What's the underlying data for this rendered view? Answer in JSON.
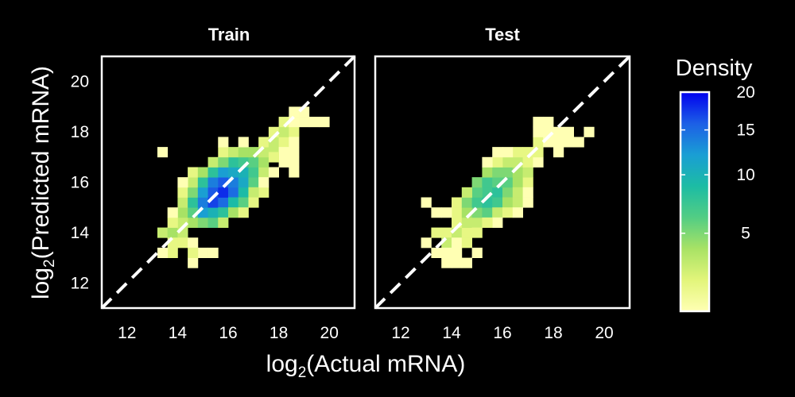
{
  "chart_data": {
    "type": "heatmap",
    "shared_axes": {
      "xlabel": {
        "prefix": "log",
        "subscript": "2",
        "text": "(Actual mRNA)"
      },
      "ylabel": {
        "prefix": "log",
        "subscript": "2",
        "text": "(Predicted mRNA)"
      },
      "xlim": [
        11,
        21
      ],
      "ylim": [
        11,
        21
      ],
      "xticks": [
        12,
        14,
        16,
        18,
        20
      ],
      "yticks": [
        12,
        14,
        16,
        18,
        20
      ],
      "xtick_labels": [
        "12",
        "14",
        "16",
        "18",
        "20"
      ],
      "ytick_labels": [
        "12",
        "14",
        "16",
        "18",
        "20"
      ],
      "bin_size": 0.4,
      "reference_line": "y = x (dashed, white)"
    },
    "legend": {
      "title": "Density",
      "scale": "sqrt",
      "range": [
        1,
        20
      ],
      "ticks": [
        5,
        10,
        15,
        20
      ],
      "tick_labels": [
        "5",
        "10",
        "15",
        "20"
      ],
      "placement": "right",
      "colors": [
        "#ffffb3",
        "#e2f57a",
        "#a8e265",
        "#52cd84",
        "#1cbca4",
        "#1a9ed4",
        "#1c5fe6",
        "#0000ee"
      ]
    },
    "panels": [
      {
        "title": "Train",
        "cells": [
          [
            13.4,
            14.0,
            3
          ],
          [
            13.8,
            14.0,
            4
          ],
          [
            13.8,
            13.6,
            2
          ],
          [
            13.8,
            13.2,
            2
          ],
          [
            13.4,
            13.2,
            1
          ],
          [
            14.2,
            14.0,
            3
          ],
          [
            14.2,
            13.6,
            2
          ],
          [
            14.6,
            13.6,
            1
          ],
          [
            14.6,
            12.8,
            1
          ],
          [
            15.0,
            13.2,
            1
          ],
          [
            15.4,
            13.2,
            1
          ],
          [
            14.6,
            14.4,
            4
          ],
          [
            14.2,
            14.4,
            3
          ],
          [
            13.8,
            14.4,
            2
          ],
          [
            14.2,
            14.8,
            4
          ],
          [
            14.6,
            14.8,
            6
          ],
          [
            14.2,
            15.2,
            3
          ],
          [
            14.6,
            15.2,
            8
          ],
          [
            15.0,
            14.4,
            5
          ],
          [
            15.0,
            14.8,
            12
          ],
          [
            14.2,
            15.6,
            2
          ],
          [
            14.6,
            15.6,
            5
          ],
          [
            15.0,
            15.2,
            14
          ],
          [
            15.4,
            14.4,
            6
          ],
          [
            15.4,
            14.8,
            10
          ],
          [
            14.6,
            16.0,
            3
          ],
          [
            15.0,
            15.6,
            12
          ],
          [
            15.4,
            15.2,
            17
          ],
          [
            15.4,
            15.6,
            16
          ],
          [
            15.8,
            15.2,
            15
          ],
          [
            15.8,
            15.6,
            18
          ],
          [
            15.0,
            16.0,
            8
          ],
          [
            15.4,
            16.0,
            14
          ],
          [
            15.8,
            16.0,
            16
          ],
          [
            16.2,
            15.6,
            15
          ],
          [
            16.2,
            16.0,
            14
          ],
          [
            14.6,
            16.4,
            2
          ],
          [
            15.0,
            16.4,
            4
          ],
          [
            15.4,
            16.4,
            8
          ],
          [
            15.8,
            16.4,
            12
          ],
          [
            16.2,
            16.4,
            11
          ],
          [
            16.6,
            15.6,
            9
          ],
          [
            16.6,
            16.0,
            11
          ],
          [
            15.8,
            14.8,
            8
          ],
          [
            16.2,
            15.2,
            9
          ],
          [
            16.6,
            15.2,
            6
          ],
          [
            15.8,
            14.4,
            3
          ],
          [
            16.2,
            14.8,
            4
          ],
          [
            16.6,
            16.4,
            10
          ],
          [
            17.0,
            16.0,
            6
          ],
          [
            17.0,
            16.4,
            7
          ],
          [
            16.2,
            16.8,
            8
          ],
          [
            16.6,
            16.8,
            7
          ],
          [
            17.0,
            16.8,
            6
          ],
          [
            15.4,
            16.8,
            3
          ],
          [
            15.8,
            16.8,
            5
          ],
          [
            15.8,
            17.2,
            2
          ],
          [
            16.2,
            17.2,
            3
          ],
          [
            16.6,
            17.2,
            4
          ],
          [
            17.0,
            17.2,
            4
          ],
          [
            17.4,
            16.4,
            3
          ],
          [
            17.4,
            16.8,
            4
          ],
          [
            17.4,
            17.2,
            3
          ],
          [
            17.4,
            15.6,
            2
          ],
          [
            17.0,
            15.6,
            3
          ],
          [
            16.6,
            14.8,
            2
          ],
          [
            17.0,
            15.2,
            2
          ],
          [
            17.8,
            17.2,
            3
          ],
          [
            17.4,
            17.6,
            2
          ],
          [
            17.8,
            17.6,
            3
          ],
          [
            18.2,
            17.6,
            2
          ],
          [
            17.8,
            18.0,
            2
          ],
          [
            18.2,
            18.0,
            3
          ],
          [
            18.2,
            18.4,
            2
          ],
          [
            18.6,
            18.0,
            2
          ],
          [
            18.6,
            18.4,
            1
          ],
          [
            18.6,
            17.6,
            1
          ],
          [
            18.2,
            17.2,
            1
          ],
          [
            18.6,
            17.2,
            1
          ],
          [
            18.6,
            16.8,
            1
          ],
          [
            17.4,
            16.0,
            1
          ],
          [
            17.8,
            16.4,
            1
          ],
          [
            18.2,
            16.8,
            1
          ],
          [
            18.6,
            16.4,
            1
          ],
          [
            17.8,
            17.0,
            2
          ],
          [
            19.0,
            18.4,
            1
          ],
          [
            19.4,
            18.4,
            1
          ],
          [
            18.6,
            18.8,
            1
          ],
          [
            19.0,
            18.8,
            1
          ],
          [
            19.8,
            18.4,
            1
          ],
          [
            13.4,
            17.2,
            1
          ],
          [
            14.6,
            13.2,
            2
          ],
          [
            13.8,
            14.8,
            1
          ],
          [
            14.2,
            16.0,
            1
          ],
          [
            15.8,
            17.6,
            1
          ],
          [
            16.6,
            17.6,
            1
          ]
        ]
      },
      {
        "title": "Test",
        "cells": [
          [
            13.0,
            13.6,
            1
          ],
          [
            13.4,
            13.2,
            1
          ],
          [
            13.4,
            14.0,
            2
          ],
          [
            13.8,
            14.0,
            2
          ],
          [
            13.8,
            13.6,
            3
          ],
          [
            13.8,
            13.2,
            1
          ],
          [
            14.2,
            14.0,
            3
          ],
          [
            14.2,
            13.6,
            1
          ],
          [
            14.2,
            13.2,
            1
          ],
          [
            14.2,
            14.4,
            2
          ],
          [
            14.6,
            14.0,
            2
          ],
          [
            14.6,
            14.4,
            3
          ],
          [
            14.2,
            14.8,
            2
          ],
          [
            13.8,
            14.8,
            1
          ],
          [
            13.4,
            14.8,
            1
          ],
          [
            13.0,
            15.2,
            1
          ],
          [
            14.2,
            15.2,
            2
          ],
          [
            14.6,
            14.8,
            4
          ],
          [
            14.6,
            15.2,
            5
          ],
          [
            15.0,
            14.4,
            3
          ],
          [
            15.0,
            14.8,
            5
          ],
          [
            15.0,
            15.2,
            7
          ],
          [
            15.4,
            14.8,
            6
          ],
          [
            15.4,
            15.2,
            8
          ],
          [
            15.4,
            15.6,
            7
          ],
          [
            15.0,
            15.6,
            6
          ],
          [
            14.6,
            15.6,
            3
          ],
          [
            15.0,
            16.0,
            5
          ],
          [
            15.4,
            16.0,
            7
          ],
          [
            15.8,
            15.6,
            8
          ],
          [
            15.8,
            15.2,
            7
          ],
          [
            15.8,
            16.0,
            6
          ],
          [
            16.2,
            15.6,
            5
          ],
          [
            16.2,
            16.0,
            6
          ],
          [
            15.4,
            16.4,
            4
          ],
          [
            15.8,
            16.4,
            5
          ],
          [
            16.2,
            16.4,
            5
          ],
          [
            16.6,
            16.0,
            4
          ],
          [
            16.6,
            16.4,
            4
          ],
          [
            16.6,
            15.6,
            3
          ],
          [
            16.2,
            15.2,
            4
          ],
          [
            16.6,
            15.2,
            3
          ],
          [
            17.0,
            16.0,
            2
          ],
          [
            17.0,
            16.4,
            3
          ],
          [
            16.2,
            16.8,
            3
          ],
          [
            16.6,
            16.8,
            3
          ],
          [
            17.0,
            16.8,
            2
          ],
          [
            15.8,
            16.8,
            2
          ],
          [
            15.4,
            16.8,
            1
          ],
          [
            16.6,
            17.2,
            2
          ],
          [
            17.0,
            17.2,
            2
          ],
          [
            17.4,
            16.8,
            1
          ],
          [
            17.4,
            17.2,
            2
          ],
          [
            17.4,
            17.6,
            2
          ],
          [
            17.8,
            17.6,
            1
          ],
          [
            17.4,
            18.0,
            1
          ],
          [
            17.8,
            18.0,
            1
          ],
          [
            17.8,
            18.4,
            1
          ],
          [
            17.4,
            18.4,
            1
          ],
          [
            18.2,
            18.0,
            1
          ],
          [
            18.2,
            17.6,
            1
          ],
          [
            18.6,
            18.0,
            1
          ],
          [
            18.6,
            17.6,
            1
          ],
          [
            18.2,
            17.2,
            1
          ],
          [
            19.0,
            17.6,
            1
          ],
          [
            19.4,
            18.0,
            1
          ],
          [
            15.8,
            14.8,
            3
          ],
          [
            16.2,
            14.8,
            2
          ],
          [
            15.8,
            14.4,
            1
          ],
          [
            16.6,
            14.8,
            1
          ],
          [
            17.0,
            15.2,
            1
          ],
          [
            17.0,
            15.6,
            1
          ],
          [
            14.6,
            12.8,
            1
          ],
          [
            15.0,
            13.2,
            1
          ],
          [
            14.2,
            12.8,
            1
          ],
          [
            13.8,
            12.8,
            1
          ],
          [
            15.4,
            14.4,
            2
          ],
          [
            14.6,
            13.6,
            2
          ],
          [
            15.0,
            14.0,
            2
          ],
          [
            15.8,
            17.2,
            1
          ],
          [
            16.2,
            17.2,
            1
          ]
        ]
      }
    ]
  }
}
